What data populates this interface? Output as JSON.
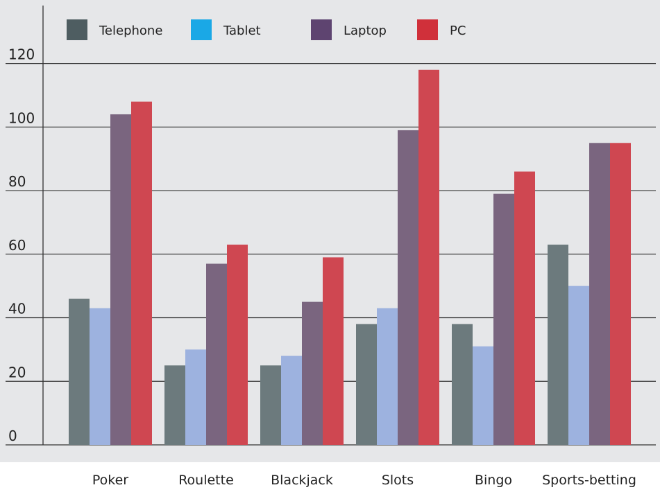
{
  "chart_data": {
    "type": "bar",
    "title": "",
    "xlabel": "",
    "ylabel": "",
    "ylim": [
      0,
      130
    ],
    "yticks": [
      0,
      20,
      40,
      60,
      80,
      100,
      120
    ],
    "grid": true,
    "legend_position": "top",
    "categories": [
      "Poker",
      "Roulette",
      "Blackjack",
      "Slots",
      "Bingo",
      "Sports-betting"
    ],
    "series": [
      {
        "name": "Telephone",
        "legend_color": "#4e5d61",
        "bar_color": "#6c7a7d",
        "values": [
          46,
          25,
          25,
          38,
          38,
          63
        ]
      },
      {
        "name": "Tablet",
        "legend_color": "#1aa8e6",
        "bar_color": "#9db2df",
        "values": [
          43,
          30,
          28,
          43,
          31,
          50
        ]
      },
      {
        "name": "Laptop",
        "legend_color": "#5e4470",
        "bar_color": "#7a657f",
        "values": [
          104,
          57,
          45,
          99,
          79,
          95
        ]
      },
      {
        "name": "PC",
        "legend_color": "#d0303a",
        "bar_color": "#cf4751",
        "values": [
          108,
          63,
          59,
          118,
          86,
          95
        ]
      }
    ],
    "plot_background": "#e6e7e9",
    "gridline_color": "#333333"
  }
}
